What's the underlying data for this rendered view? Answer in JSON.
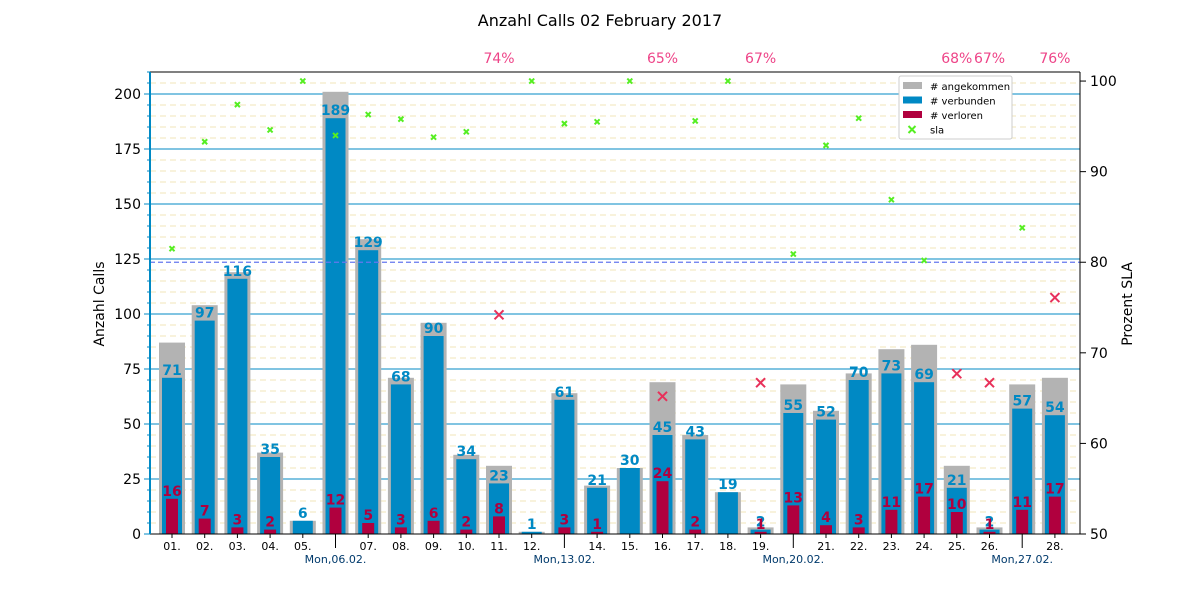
{
  "chart_data": {
    "type": "bar",
    "title": "Anzahl Calls 02 February 2017",
    "ylabel": "Anzahl Calls",
    "y2label": "Prozent SLA",
    "ylim": [
      0,
      210
    ],
    "y2lim": [
      50,
      101
    ],
    "yticks": [
      0,
      25,
      50,
      75,
      100,
      125,
      150,
      175,
      200
    ],
    "y2ticks": [
      50,
      60,
      70,
      80,
      90,
      100
    ],
    "sla_threshold": 80,
    "grid": true,
    "legend_position": "top-right",
    "categories": [
      "01.",
      "02.",
      "03.",
      "04.",
      "05.",
      "06.",
      "07.",
      "08.",
      "09.",
      "10.",
      "11.",
      "12.",
      "13.",
      "14.",
      "15.",
      "16.",
      "17.",
      "18.",
      "19.",
      "20.",
      "21.",
      "22.",
      "23.",
      "24.",
      "25.",
      "26.",
      "27.",
      "28."
    ],
    "week_labels": [
      {
        "index": 5,
        "label": "Mon,06.02."
      },
      {
        "index": 12,
        "label": "Mon,13.02."
      },
      {
        "index": 19,
        "label": "Mon,20.02."
      },
      {
        "index": 26,
        "label": "Mon,27.02."
      }
    ],
    "series": [
      {
        "name": "# angekommen",
        "color": "#b3b3b3",
        "values": [
          87,
          104,
          119,
          37,
          6,
          201,
          134,
          71,
          96,
          36,
          31,
          1,
          64,
          22,
          30,
          69,
          45,
          19,
          3,
          68,
          56,
          73,
          84,
          86,
          31,
          3,
          68,
          71
        ]
      },
      {
        "name": "# verbunden",
        "color": "#0089c4",
        "values": [
          71,
          97,
          116,
          35,
          6,
          189,
          129,
          68,
          90,
          34,
          23,
          1,
          61,
          21,
          30,
          45,
          43,
          19,
          2,
          55,
          52,
          70,
          73,
          69,
          21,
          2,
          57,
          54
        ]
      },
      {
        "name": "# verloren",
        "color": "#b0003e",
        "values": [
          16,
          7,
          3,
          2,
          0,
          12,
          5,
          3,
          6,
          2,
          8,
          0,
          3,
          1,
          0,
          24,
          2,
          0,
          1,
          13,
          4,
          3,
          11,
          17,
          10,
          1,
          11,
          17
        ]
      },
      {
        "name": "sla",
        "color": "#55ee22",
        "values": [
          81.5,
          93.3,
          97.4,
          94.6,
          100,
          94.0,
          96.3,
          95.8,
          93.8,
          94.4,
          74.2,
          100,
          95.3,
          95.5,
          100,
          65.2,
          95.6,
          100,
          66.7,
          80.9,
          92.9,
          95.9,
          86.9,
          80.2,
          67.7,
          66.7,
          83.8,
          76.1
        ]
      }
    ],
    "bar_labels": {
      "verbunden": [
        "71",
        "97",
        "116",
        "35",
        "6",
        "189",
        "129",
        "68",
        "90",
        "34",
        "23",
        "1",
        "61",
        "21",
        "30",
        "45",
        "43",
        "19",
        "2",
        "55",
        "52",
        "70",
        "73",
        "69",
        "21",
        "2",
        "57",
        "54"
      ],
      "verloren": [
        "16",
        "7",
        "3",
        "2",
        "",
        "12",
        "5",
        "3",
        "6",
        "2",
        "8",
        "",
        "3",
        "1",
        "",
        "24",
        "2",
        "",
        "1",
        "13",
        "4",
        "3",
        "11",
        "17",
        "10",
        "1",
        "11",
        "17"
      ]
    },
    "sla_low_labels": [
      {
        "index": 10,
        "label": "74%"
      },
      {
        "index": 15,
        "label": "65%"
      },
      {
        "index": 18,
        "label": "67%"
      },
      {
        "index": 24,
        "label": "68%"
      },
      {
        "index": 25,
        "label": "67%"
      },
      {
        "index": 27,
        "label": "76%"
      }
    ],
    "colors": {
      "angekommen": "#b3b3b3",
      "verbunden": "#0089c4",
      "verloren": "#b0003e",
      "sla_ok": "#55ee22",
      "sla_low": "#e8305a",
      "sla_low_label": "#ee4488",
      "axis_left": "#0089c4",
      "gridline": "#0089c4",
      "minor_grid": "#f0e6b8",
      "week_label": "#003a6c",
      "threshold": "#6677ee"
    }
  }
}
